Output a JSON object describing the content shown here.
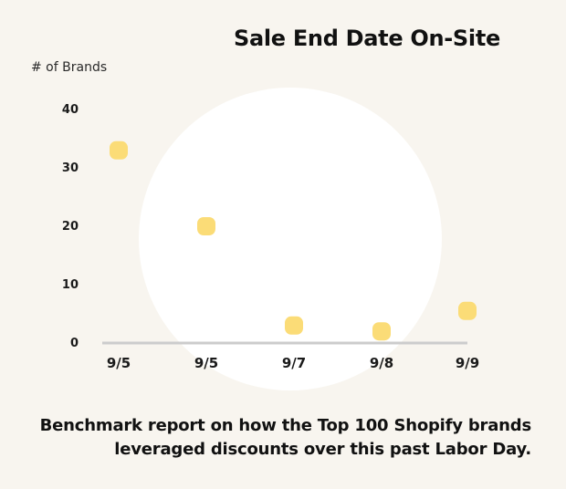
{
  "chart_data": {
    "type": "scatter",
    "title": "Sale End Date On-Site",
    "ylabel": "# of Brands",
    "xlabel": "",
    "categories": [
      "9/5",
      "9/5",
      "9/7",
      "9/8",
      "9/9"
    ],
    "values": [
      33,
      20,
      3,
      2,
      5.5
    ],
    "yticks": [
      "0",
      "10",
      "20",
      "30",
      "40"
    ],
    "ylim": [
      0,
      40
    ],
    "grid": false,
    "point_color": "#fbdc77",
    "axis_color": "#cccccc"
  },
  "caption": {
    "line1": "Benchmark report on how the Top 100 Shopify brands",
    "line2": "leveraged discounts over this past Labor Day."
  }
}
